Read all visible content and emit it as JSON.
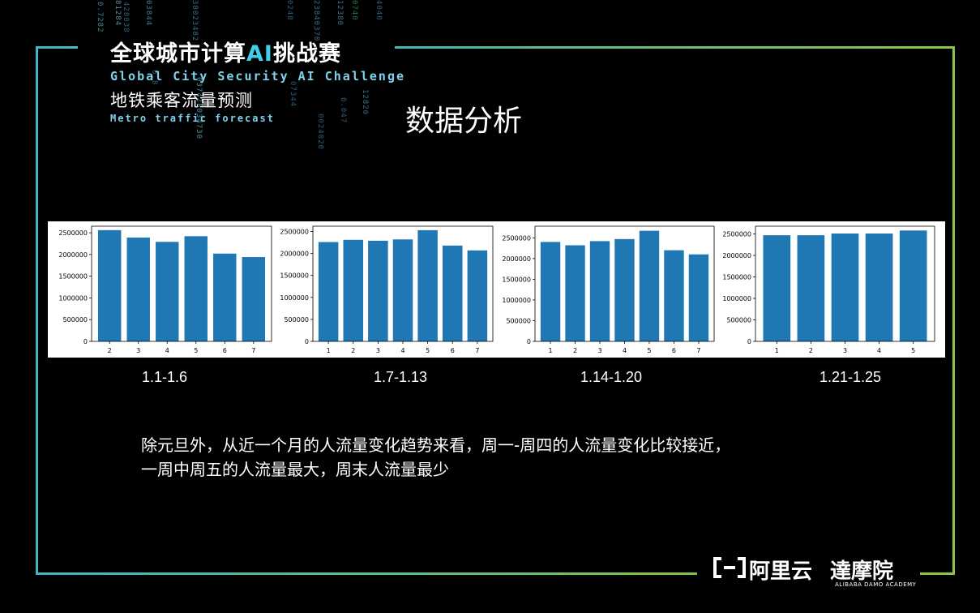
{
  "header": {
    "title_part1": "全球城市计算",
    "title_ai": "AI",
    "title_part2": "挑战赛",
    "subtitle_en": "Global City Security AI Challenge",
    "track_cn": "地铁乘客流量预测",
    "track_en": "Metro traffic forecast"
  },
  "slide_title": "数据分析",
  "colors": {
    "bar": "#1f77b4",
    "frame_left": "#3fb6c8",
    "frame_right": "#8cc63f"
  },
  "chart_data": [
    {
      "type": "bar",
      "categories": [
        "2",
        "3",
        "4",
        "5",
        "6",
        "7"
      ],
      "values": [
        2560000,
        2390000,
        2290000,
        2420000,
        2020000,
        1940000
      ],
      "ylim": [
        0,
        2650000
      ],
      "yticks": [
        0,
        500000,
        1000000,
        1500000,
        2000000,
        2500000
      ],
      "caption": "1.1-1.6"
    },
    {
      "type": "bar",
      "categories": [
        "1",
        "2",
        "3",
        "4",
        "5",
        "6",
        "7"
      ],
      "values": [
        2260000,
        2310000,
        2290000,
        2320000,
        2530000,
        2180000,
        2070000
      ],
      "ylim": [
        0,
        2620000
      ],
      "yticks": [
        0,
        500000,
        1000000,
        1500000,
        2000000,
        2500000
      ],
      "caption": "1.7-1.13"
    },
    {
      "type": "bar",
      "categories": [
        "1",
        "2",
        "3",
        "4",
        "5",
        "6",
        "7"
      ],
      "values": [
        2400000,
        2320000,
        2420000,
        2470000,
        2670000,
        2200000,
        2100000
      ],
      "ylim": [
        0,
        2780000
      ],
      "yticks": [
        0,
        500000,
        1000000,
        1500000,
        2000000,
        2500000
      ],
      "caption": "1.14-1.20"
    },
    {
      "type": "bar",
      "categories": [
        "1",
        "2",
        "3",
        "4",
        "5"
      ],
      "values": [
        2470000,
        2470000,
        2510000,
        2510000,
        2580000
      ],
      "ylim": [
        0,
        2680000
      ],
      "yticks": [
        0,
        500000,
        1000000,
        1500000,
        2000000,
        2500000
      ],
      "caption": "1.21-1.25"
    }
  ],
  "conclusion": {
    "line1": "除元旦外，从近一个月的人流量变化趋势来看，周一-周四的人流量变化比较接近，",
    "line2": "一周中周五的人流量最大，周末人流量最少"
  },
  "footer": {
    "aliyun_icon": "aliyun-bracket-icon",
    "aliyun_text": "阿里云",
    "damo_text": "達摩院",
    "damo_sub": "ALIBABA DAMO ACADEMY"
  }
}
